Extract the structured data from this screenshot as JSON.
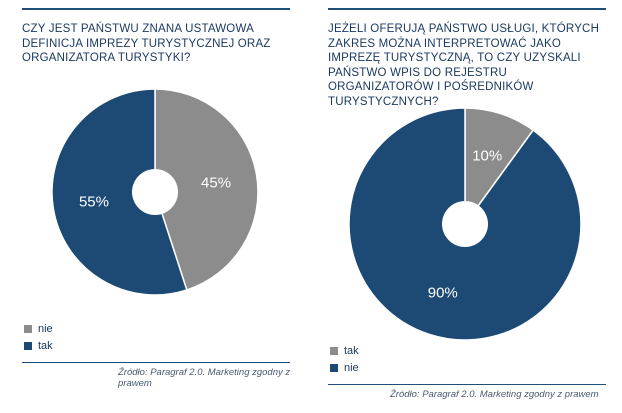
{
  "chart_data": [
    {
      "type": "pie",
      "donut": true,
      "title": "CZY JEST PAŃSTWU ZNANA USTAWOWA DEFINICJA IMPREZY TURYSTYCZNEJ ORAZ ORGANIZATORA TURYSTYKI?",
      "slices": [
        {
          "label": "nie",
          "value": 45,
          "display": "45%",
          "color": "#8c8c8c"
        },
        {
          "label": "tak",
          "value": 55,
          "display": "55%",
          "color": "#1c4a75"
        }
      ],
      "legend": [
        {
          "label": "nie",
          "color": "#8c8c8c"
        },
        {
          "label": "tak",
          "color": "#1c4a75"
        }
      ],
      "legend_placement": "bottom-left",
      "source": "Źródło: Paragraf 2.0. Marketing zgodny z prawem"
    },
    {
      "type": "pie",
      "donut": true,
      "title": "JEŻELI OFERUJĄ PAŃSTWO USŁUGI, KTÓRYCH ZAKRES MOŻNA INTERPRETOWAĆ JAKO IMPREZĘ TURYSTYCZNĄ, TO CZY UZYSKALI PAŃSTWO WPIS DO REJESTRU ORGANIZATORÓW I POŚREDNIKÓW TURYSTYCZNYCH?",
      "slices": [
        {
          "label": "tak",
          "value": 10,
          "display": "10%",
          "color": "#8c8c8c"
        },
        {
          "label": "nie",
          "value": 90,
          "display": "90%",
          "color": "#1c4a75"
        }
      ],
      "legend": [
        {
          "label": "tak",
          "color": "#8c8c8c"
        },
        {
          "label": "nie",
          "color": "#1c4a75"
        }
      ],
      "legend_placement": "bottom-left",
      "source": "Źródło: Paragraf 2.0. Marketing zgodny z prawem"
    }
  ]
}
